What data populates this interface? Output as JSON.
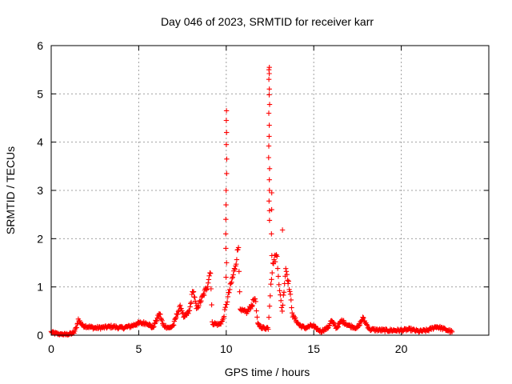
{
  "chart_data": {
    "type": "scatter",
    "title": "Day 046 of 2023, SRMTID for receiver karr",
    "xlabel": "GPS time / hours",
    "ylabel": "SRMTID / TECUs",
    "xlim": [
      0,
      25
    ],
    "ylim": [
      0,
      6
    ],
    "x_ticks": [
      0,
      5,
      10,
      15,
      20
    ],
    "y_ticks": [
      0,
      1,
      2,
      3,
      4,
      5,
      6
    ],
    "grid": true,
    "marker": "+",
    "series_color": "#ff0000",
    "series": [
      {
        "name": "SRMTID",
        "anchors": [
          [
            0.0,
            0.07
          ],
          [
            0.1,
            0.05
          ],
          [
            0.55,
            0.01
          ],
          [
            1.0,
            0.02
          ],
          [
            1.3,
            0.05
          ],
          [
            1.45,
            0.18
          ],
          [
            1.55,
            0.32
          ],
          [
            1.8,
            0.2
          ],
          [
            2.5,
            0.15
          ],
          [
            3.0,
            0.16
          ],
          [
            3.5,
            0.18
          ],
          [
            4.0,
            0.15
          ],
          [
            4.5,
            0.18
          ],
          [
            5.0,
            0.25
          ],
          [
            5.5,
            0.25
          ],
          [
            5.8,
            0.15
          ],
          [
            6.0,
            0.3
          ],
          [
            6.2,
            0.45
          ],
          [
            6.4,
            0.2
          ],
          [
            6.8,
            0.15
          ],
          [
            7.0,
            0.22
          ],
          [
            7.2,
            0.45
          ],
          [
            7.4,
            0.6
          ],
          [
            7.6,
            0.35
          ],
          [
            7.9,
            0.5
          ],
          [
            8.1,
            0.95
          ],
          [
            8.3,
            0.55
          ],
          [
            8.6,
            0.75
          ],
          [
            8.9,
            1.0
          ],
          [
            9.1,
            1.35
          ],
          [
            9.2,
            0.25
          ],
          [
            9.6,
            0.22
          ],
          [
            9.8,
            0.3
          ],
          [
            9.95,
            0.55
          ],
          [
            10.2,
            0.95
          ],
          [
            10.5,
            1.4
          ],
          [
            10.7,
            1.85
          ],
          [
            10.8,
            0.5
          ],
          [
            11.2,
            0.48
          ],
          [
            11.5,
            0.65
          ],
          [
            11.65,
            0.8
          ],
          [
            11.8,
            0.22
          ],
          [
            12.1,
            0.15
          ],
          [
            12.4,
            0.15
          ],
          [
            12.55,
            1.1
          ],
          [
            12.7,
            1.55
          ],
          [
            12.9,
            1.65
          ],
          [
            13.05,
            0.9
          ],
          [
            13.2,
            0.5
          ],
          [
            13.4,
            1.4
          ],
          [
            13.6,
            1.0
          ],
          [
            13.8,
            0.4
          ],
          [
            14.2,
            0.2
          ],
          [
            14.5,
            0.15
          ],
          [
            14.9,
            0.2
          ],
          [
            15.4,
            0.08
          ],
          [
            15.8,
            0.15
          ],
          [
            16.0,
            0.3
          ],
          [
            16.3,
            0.15
          ],
          [
            16.6,
            0.3
          ],
          [
            17.0,
            0.2
          ],
          [
            17.5,
            0.15
          ],
          [
            17.8,
            0.35
          ],
          [
            18.2,
            0.12
          ],
          [
            19.0,
            0.1
          ],
          [
            20.0,
            0.1
          ],
          [
            20.5,
            0.12
          ],
          [
            21.0,
            0.08
          ],
          [
            21.5,
            0.1
          ],
          [
            22.0,
            0.18
          ],
          [
            22.5,
            0.12
          ],
          [
            22.9,
            0.07
          ]
        ],
        "spikes": [
          {
            "x": 10.0,
            "values": [
              4.65,
              4.45,
              4.2,
              3.95,
              3.65,
              3.35,
              3.0,
              2.7,
              2.4,
              2.1,
              1.8,
              1.5,
              1.2
            ]
          },
          {
            "x": 12.45,
            "values": [
              5.55,
              5.5,
              5.42,
              5.3,
              5.1,
              4.98,
              4.78,
              4.6,
              4.35,
              4.12,
              3.92,
              3.68,
              3.45,
              3.22,
              3.0,
              2.78,
              2.58,
              2.38
            ]
          },
          {
            "x": 12.58,
            "values": [
              2.95,
              2.6,
              2.1,
              1.65
            ]
          },
          {
            "x": 13.2,
            "values": [
              2.18
            ]
          }
        ]
      }
    ]
  }
}
